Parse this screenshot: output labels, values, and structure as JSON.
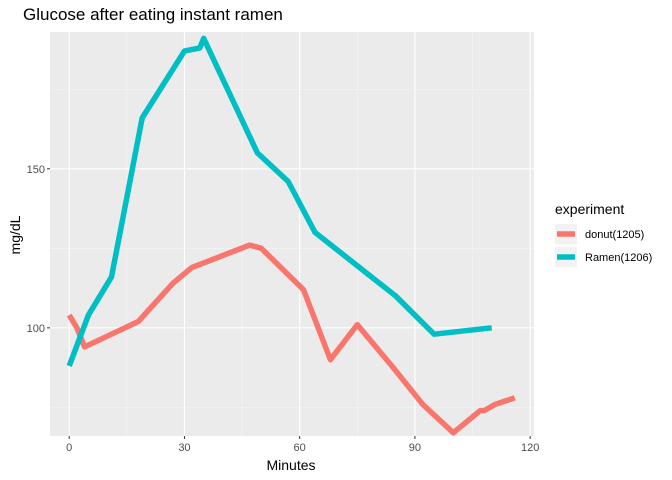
{
  "chart_data": {
    "type": "line",
    "title": "Glucose after eating instant ramen",
    "xlabel": "Minutes",
    "ylabel": "mg/dL",
    "xlim": [
      -5,
      121
    ],
    "ylim": [
      66,
      193
    ],
    "x_ticks": [
      0,
      30,
      60,
      90,
      120
    ],
    "y_ticks": [
      100,
      150
    ],
    "x_tick_labels": [
      "0",
      "30",
      "60",
      "90",
      "120"
    ],
    "y_tick_labels": [
      "100",
      "150"
    ],
    "grid": true,
    "legend": {
      "title": "experiment",
      "placement": "right"
    },
    "series": [
      {
        "name": "donut(1205)",
        "color": "#F8766D",
        "points": [
          [
            0,
            104
          ],
          [
            2,
            100
          ],
          [
            4,
            94
          ],
          [
            18,
            102
          ],
          [
            27,
            114
          ],
          [
            32,
            119
          ],
          [
            47,
            126
          ],
          [
            50,
            125
          ],
          [
            61,
            112
          ],
          [
            68,
            90
          ],
          [
            75,
            101
          ],
          [
            84,
            88
          ],
          [
            92,
            76
          ],
          [
            100,
            67
          ],
          [
            107,
            74
          ],
          [
            108,
            74
          ],
          [
            111,
            76
          ],
          [
            116,
            78
          ]
        ]
      },
      {
        "name": "Ramen(1206)",
        "color": "#00BFC4",
        "points": [
          [
            0,
            88
          ],
          [
            5,
            104
          ],
          [
            11,
            116
          ],
          [
            19,
            166
          ],
          [
            30,
            187
          ],
          [
            34,
            188
          ],
          [
            35,
            191
          ],
          [
            49,
            155
          ],
          [
            57,
            146
          ],
          [
            64,
            130
          ],
          [
            85,
            110
          ],
          [
            95,
            98
          ],
          [
            110,
            100
          ]
        ]
      }
    ]
  }
}
